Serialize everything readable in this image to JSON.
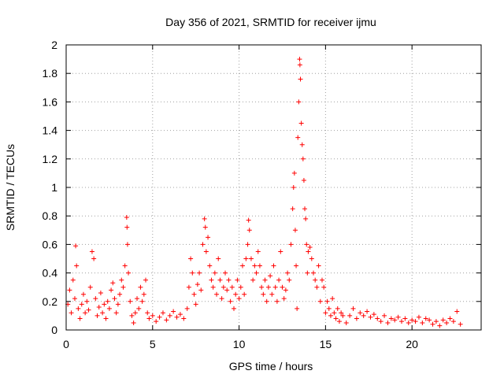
{
  "chart_data": {
    "type": "scatter",
    "title": "Day 356 of 2021, SRMTID for receiver ijmu",
    "xlabel": "GPS time / hours",
    "ylabel": "SRMTID / TECUs",
    "xlim": [
      0,
      24
    ],
    "ylim": [
      0,
      2
    ],
    "xticks": [
      0,
      5,
      10,
      15,
      20
    ],
    "yticks": [
      0,
      0.2,
      0.4,
      0.6,
      0.8,
      1,
      1.2,
      1.4,
      1.6,
      1.8,
      2
    ],
    "grid": true,
    "marker": "+",
    "series": [
      {
        "name": "SRMTID",
        "color": "#ff0000",
        "points": [
          [
            0.1,
            0.18
          ],
          [
            0.2,
            0.28
          ],
          [
            0.3,
            0.12
          ],
          [
            0.4,
            0.35
          ],
          [
            0.5,
            0.22
          ],
          [
            0.55,
            0.59
          ],
          [
            0.6,
            0.45
          ],
          [
            0.7,
            0.15
          ],
          [
            0.8,
            0.08
          ],
          [
            0.9,
            0.18
          ],
          [
            1.0,
            0.25
          ],
          [
            1.1,
            0.12
          ],
          [
            1.2,
            0.2
          ],
          [
            1.3,
            0.14
          ],
          [
            1.4,
            0.3
          ],
          [
            1.5,
            0.55
          ],
          [
            1.6,
            0.5
          ],
          [
            1.7,
            0.22
          ],
          [
            1.8,
            0.1
          ],
          [
            1.9,
            0.16
          ],
          [
            2.0,
            0.26
          ],
          [
            2.1,
            0.12
          ],
          [
            2.2,
            0.18
          ],
          [
            2.3,
            0.08
          ],
          [
            2.4,
            0.2
          ],
          [
            2.5,
            0.15
          ],
          [
            2.6,
            0.28
          ],
          [
            2.7,
            0.33
          ],
          [
            2.8,
            0.22
          ],
          [
            2.9,
            0.12
          ],
          [
            3.0,
            0.18
          ],
          [
            3.1,
            0.25
          ],
          [
            3.2,
            0.35
          ],
          [
            3.3,
            0.3
          ],
          [
            3.4,
            0.45
          ],
          [
            3.5,
            0.79
          ],
          [
            3.52,
            0.72
          ],
          [
            3.55,
            0.6
          ],
          [
            3.6,
            0.4
          ],
          [
            3.7,
            0.2
          ],
          [
            3.8,
            0.1
          ],
          [
            3.9,
            0.05
          ],
          [
            4.0,
            0.12
          ],
          [
            4.1,
            0.22
          ],
          [
            4.2,
            0.15
          ],
          [
            4.3,
            0.3
          ],
          [
            4.4,
            0.2
          ],
          [
            4.5,
            0.25
          ],
          [
            4.6,
            0.35
          ],
          [
            4.7,
            0.12
          ],
          [
            4.8,
            0.08
          ],
          [
            5.0,
            0.1
          ],
          [
            5.2,
            0.06
          ],
          [
            5.4,
            0.09
          ],
          [
            5.6,
            0.12
          ],
          [
            5.8,
            0.07
          ],
          [
            6.0,
            0.1
          ],
          [
            6.2,
            0.13
          ],
          [
            6.4,
            0.09
          ],
          [
            6.6,
            0.11
          ],
          [
            6.8,
            0.08
          ],
          [
            7.0,
            0.15
          ],
          [
            7.1,
            0.3
          ],
          [
            7.2,
            0.5
          ],
          [
            7.3,
            0.4
          ],
          [
            7.4,
            0.25
          ],
          [
            7.5,
            0.18
          ],
          [
            7.6,
            0.32
          ],
          [
            7.7,
            0.4
          ],
          [
            7.8,
            0.28
          ],
          [
            7.9,
            0.6
          ],
          [
            8.0,
            0.78
          ],
          [
            8.05,
            0.72
          ],
          [
            8.1,
            0.55
          ],
          [
            8.2,
            0.65
          ],
          [
            8.3,
            0.45
          ],
          [
            8.4,
            0.35
          ],
          [
            8.5,
            0.3
          ],
          [
            8.6,
            0.4
          ],
          [
            8.7,
            0.25
          ],
          [
            8.8,
            0.5
          ],
          [
            8.9,
            0.35
          ],
          [
            9.0,
            0.22
          ],
          [
            9.1,
            0.3
          ],
          [
            9.2,
            0.4
          ],
          [
            9.3,
            0.28
          ],
          [
            9.4,
            0.35
          ],
          [
            9.5,
            0.2
          ],
          [
            9.6,
            0.3
          ],
          [
            9.7,
            0.15
          ],
          [
            9.8,
            0.25
          ],
          [
            9.9,
            0.35
          ],
          [
            10.0,
            0.22
          ],
          [
            10.1,
            0.3
          ],
          [
            10.2,
            0.45
          ],
          [
            10.3,
            0.25
          ],
          [
            10.4,
            0.5
          ],
          [
            10.5,
            0.6
          ],
          [
            10.55,
            0.77
          ],
          [
            10.6,
            0.7
          ],
          [
            10.7,
            0.5
          ],
          [
            10.8,
            0.35
          ],
          [
            10.9,
            0.45
          ],
          [
            11.0,
            0.4
          ],
          [
            11.1,
            0.55
          ],
          [
            11.2,
            0.45
          ],
          [
            11.3,
            0.3
          ],
          [
            11.4,
            0.25
          ],
          [
            11.5,
            0.35
          ],
          [
            11.6,
            0.2
          ],
          [
            11.7,
            0.3
          ],
          [
            11.8,
            0.38
          ],
          [
            11.9,
            0.25
          ],
          [
            12.0,
            0.45
          ],
          [
            12.1,
            0.3
          ],
          [
            12.2,
            0.2
          ],
          [
            12.3,
            0.35
          ],
          [
            12.4,
            0.55
          ],
          [
            12.5,
            0.3
          ],
          [
            12.6,
            0.22
          ],
          [
            12.7,
            0.28
          ],
          [
            12.8,
            0.4
          ],
          [
            12.9,
            0.35
          ],
          [
            13.0,
            0.6
          ],
          [
            13.1,
            0.85
          ],
          [
            13.15,
            1.0
          ],
          [
            13.2,
            1.1
          ],
          [
            13.25,
            0.7
          ],
          [
            13.3,
            0.45
          ],
          [
            13.35,
            0.15
          ],
          [
            13.4,
            1.35
          ],
          [
            13.45,
            1.6
          ],
          [
            13.5,
            1.9
          ],
          [
            13.52,
            1.86
          ],
          [
            13.55,
            1.76
          ],
          [
            13.6,
            1.45
          ],
          [
            13.65,
            1.3
          ],
          [
            13.7,
            1.2
          ],
          [
            13.75,
            1.05
          ],
          [
            13.8,
            0.85
          ],
          [
            13.85,
            0.78
          ],
          [
            13.9,
            0.6
          ],
          [
            13.95,
            0.4
          ],
          [
            14.0,
            0.55
          ],
          [
            14.1,
            0.58
          ],
          [
            14.2,
            0.5
          ],
          [
            14.3,
            0.4
          ],
          [
            14.4,
            0.35
          ],
          [
            14.5,
            0.3
          ],
          [
            14.6,
            0.45
          ],
          [
            14.7,
            0.2
          ],
          [
            14.8,
            0.35
          ],
          [
            14.9,
            0.3
          ],
          [
            15.0,
            0.12
          ],
          [
            15.1,
            0.2
          ],
          [
            15.2,
            0.15
          ],
          [
            15.3,
            0.1
          ],
          [
            15.4,
            0.22
          ],
          [
            15.5,
            0.12
          ],
          [
            15.6,
            0.08
          ],
          [
            15.7,
            0.15
          ],
          [
            15.8,
            0.06
          ],
          [
            15.9,
            0.12
          ],
          [
            16.0,
            0.1
          ],
          [
            16.2,
            0.05
          ],
          [
            16.4,
            0.1
          ],
          [
            16.6,
            0.15
          ],
          [
            16.8,
            0.08
          ],
          [
            17.0,
            0.12
          ],
          [
            17.2,
            0.1
          ],
          [
            17.4,
            0.13
          ],
          [
            17.6,
            0.09
          ],
          [
            17.8,
            0.11
          ],
          [
            18.0,
            0.08
          ],
          [
            18.2,
            0.06
          ],
          [
            18.4,
            0.1
          ],
          [
            18.6,
            0.05
          ],
          [
            18.8,
            0.08
          ],
          [
            19.0,
            0.07
          ],
          [
            19.2,
            0.09
          ],
          [
            19.4,
            0.06
          ],
          [
            19.6,
            0.08
          ],
          [
            19.8,
            0.05
          ],
          [
            20.0,
            0.07
          ],
          [
            20.2,
            0.06
          ],
          [
            20.4,
            0.09
          ],
          [
            20.6,
            0.05
          ],
          [
            20.8,
            0.08
          ],
          [
            21.0,
            0.07
          ],
          [
            21.2,
            0.04
          ],
          [
            21.4,
            0.06
          ],
          [
            21.6,
            0.03
          ],
          [
            21.8,
            0.07
          ],
          [
            22.0,
            0.05
          ],
          [
            22.2,
            0.08
          ],
          [
            22.4,
            0.06
          ],
          [
            22.6,
            0.13
          ],
          [
            22.8,
            0.04
          ]
        ]
      }
    ]
  }
}
